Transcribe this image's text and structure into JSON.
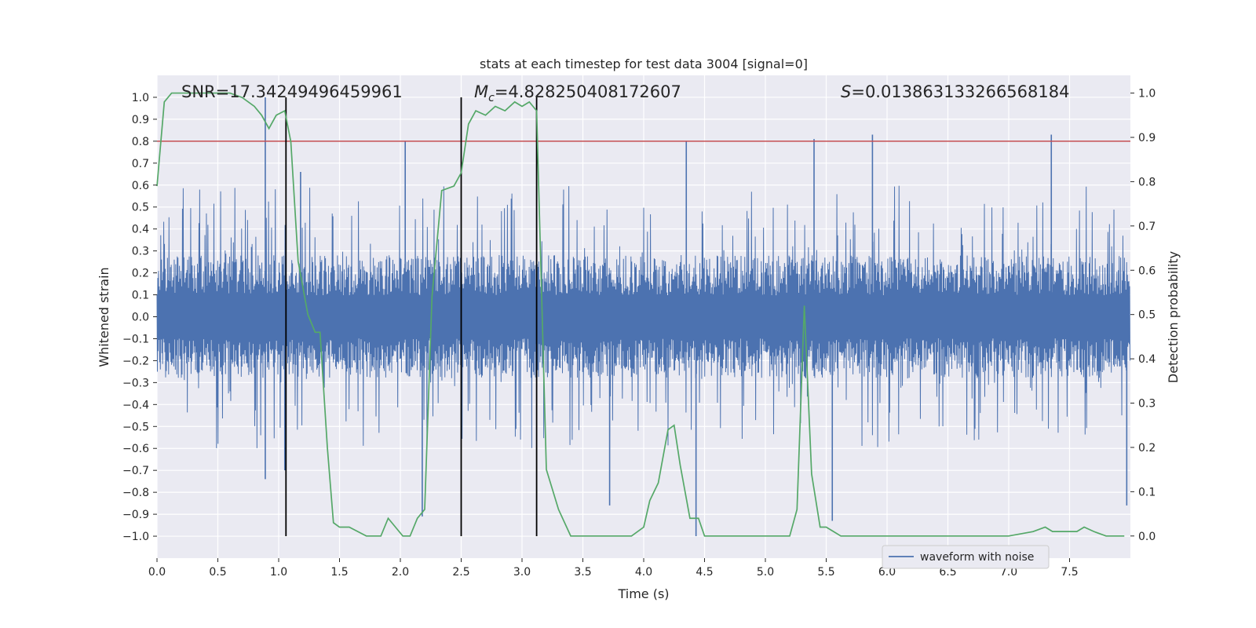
{
  "chart_data": {
    "type": "line",
    "title": "stats at each timestep for test data 3004 [signal=0]",
    "xlabel": "Time (s)",
    "ylabel": "Whitened strain",
    "y2label": "Detection probability",
    "xlim": [
      0.0,
      8.0
    ],
    "ylim": [
      -1.1,
      1.1
    ],
    "y2lim": [
      -0.05,
      1.04
    ],
    "x_ticks": [
      "0.0",
      "0.5",
      "1.0",
      "1.5",
      "2.0",
      "2.5",
      "3.0",
      "3.5",
      "4.0",
      "4.5",
      "5.0",
      "5.5",
      "6.0",
      "6.5",
      "7.0",
      "7.5"
    ],
    "y_ticks": [
      "1.0",
      "0.9",
      "0.8",
      "0.7",
      "0.6",
      "0.5",
      "0.4",
      "0.3",
      "0.2",
      "0.1",
      "0.0",
      "−0.1",
      "−0.2",
      "−0.3",
      "−0.4",
      "−0.5",
      "−0.6",
      "−0.7",
      "−0.8",
      "−0.9",
      "−1.0"
    ],
    "y2_ticks": [
      "1.0",
      "0.9",
      "0.8",
      "0.7",
      "0.6",
      "0.5",
      "0.4",
      "0.3",
      "0.2",
      "0.1",
      "0.0"
    ],
    "threshold": 0.8,
    "vlines": [
      1.06,
      2.5,
      3.12
    ],
    "annotations": {
      "snr": "SNR=17.34249496459961",
      "mc_symbol": "M",
      "mc_sub": "c",
      "mc_value": "=4.828250408172607",
      "s_symbol": "S",
      "s_value": "=0.013863133266568184"
    },
    "legend": {
      "label": "waveform with noise",
      "position": "lower-right"
    },
    "series": [
      {
        "name": "waveform with noise",
        "axis": "left",
        "color": "#4c72b0",
        "envelope_typical": 0.28,
        "envelope_peak": 0.6,
        "spikes": [
          {
            "x": 0.89,
            "y": 1.0
          },
          {
            "x": 0.89,
            "y": -0.74
          },
          {
            "x": 1.05,
            "y": -0.7
          },
          {
            "x": 1.18,
            "y": 0.66
          },
          {
            "x": 2.04,
            "y": 0.8
          },
          {
            "x": 2.18,
            "y": -0.91
          },
          {
            "x": 3.72,
            "y": -0.86
          },
          {
            "x": 4.35,
            "y": 0.8
          },
          {
            "x": 4.43,
            "y": -1.0
          },
          {
            "x": 5.4,
            "y": 0.81
          },
          {
            "x": 5.55,
            "y": -0.93
          },
          {
            "x": 5.88,
            "y": 0.83
          },
          {
            "x": 7.35,
            "y": 0.83
          },
          {
            "x": 7.97,
            "y": -0.86
          }
        ]
      },
      {
        "name": "detection probability",
        "axis": "right",
        "color": "#55a868",
        "x": [
          0.0,
          0.06,
          0.12,
          0.24,
          0.42,
          0.6,
          0.7,
          0.8,
          0.86,
          0.92,
          0.98,
          1.05,
          1.1,
          1.16,
          1.24,
          1.3,
          1.34,
          1.4,
          1.45,
          1.5,
          1.58,
          1.65,
          1.72,
          1.78,
          1.84,
          1.9,
          1.96,
          2.02,
          2.08,
          2.14,
          2.2,
          2.26,
          2.34,
          2.44,
          2.5,
          2.56,
          2.62,
          2.7,
          2.78,
          2.86,
          2.94,
          3.0,
          3.06,
          3.12,
          3.2,
          3.3,
          3.4,
          3.5,
          3.6,
          3.7,
          3.8,
          3.9,
          4.0,
          4.05,
          4.12,
          4.2,
          4.25,
          4.3,
          4.38,
          4.45,
          4.5,
          4.6,
          4.7,
          4.8,
          4.9,
          5.0,
          5.1,
          5.2,
          5.26,
          5.32,
          5.38,
          5.45,
          5.5,
          5.56,
          5.62,
          5.7,
          5.8,
          5.9,
          6.0,
          6.2,
          6.4,
          6.6,
          6.8,
          7.0,
          7.2,
          7.3,
          7.36,
          7.44,
          7.5,
          7.56,
          7.62,
          7.7,
          7.8,
          7.95
        ],
        "y": [
          0.79,
          0.98,
          1.0,
          1.0,
          1.0,
          1.0,
          0.99,
          0.97,
          0.95,
          0.92,
          0.95,
          0.96,
          0.89,
          0.62,
          0.5,
          0.46,
          0.46,
          0.2,
          0.03,
          0.02,
          0.02,
          0.01,
          0.0,
          0.0,
          0.0,
          0.04,
          0.02,
          0.0,
          0.0,
          0.04,
          0.06,
          0.54,
          0.78,
          0.79,
          0.82,
          0.93,
          0.96,
          0.95,
          0.97,
          0.96,
          0.98,
          0.97,
          0.98,
          0.96,
          0.15,
          0.06,
          0.0,
          0.0,
          0.0,
          0.0,
          0.0,
          0.0,
          0.02,
          0.08,
          0.12,
          0.24,
          0.25,
          0.16,
          0.04,
          0.04,
          0.0,
          0.0,
          0.0,
          0.0,
          0.0,
          0.0,
          0.0,
          0.0,
          0.06,
          0.52,
          0.14,
          0.02,
          0.02,
          0.01,
          0.0,
          0.0,
          0.0,
          0.0,
          0.0,
          0.0,
          0.0,
          0.0,
          0.0,
          0.0,
          0.01,
          0.02,
          0.01,
          0.01,
          0.01,
          0.01,
          0.02,
          0.01,
          0.0,
          0.0
        ]
      }
    ]
  }
}
